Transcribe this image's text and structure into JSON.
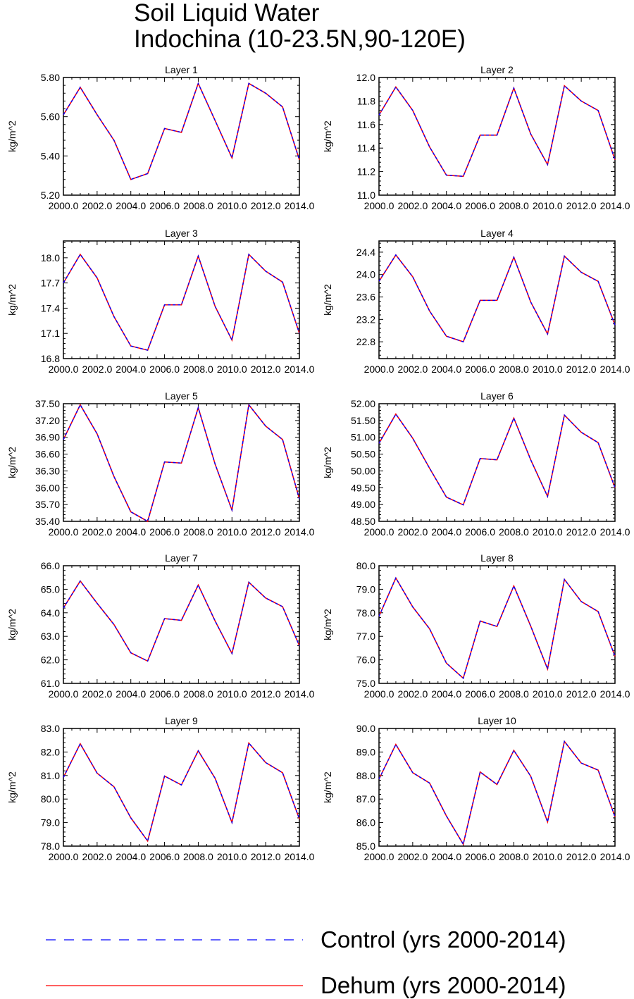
{
  "title": [
    "Soil Liquid Water",
    "Indochina (10-23.5N,90-120E)"
  ],
  "colors": {
    "control": "#0000ff",
    "dehum": "#ff0000",
    "axis": "#000000"
  },
  "legend": {
    "position": "bottom",
    "entries": [
      {
        "label": "Control (yrs 2000-2014)",
        "style": "dashed",
        "color": "#0000ff"
      },
      {
        "label": "Dehum (yrs 2000-2014)",
        "style": "solid",
        "color": "#ff0000"
      }
    ]
  },
  "chart_data": [
    {
      "type": "line",
      "title": "Layer 1",
      "ylabel": "kg/m^2",
      "xlim": [
        2000,
        2014
      ],
      "ylim": [
        5.2,
        5.8
      ],
      "yticks": [
        "5.20",
        "5.40",
        "5.60",
        "5.80"
      ],
      "xticks": [
        "2000.0",
        "2002.0",
        "2004.0",
        "2006.0",
        "2008.0",
        "2010.0",
        "2012.0",
        "2014.0"
      ],
      "x": [
        2000,
        2001,
        2002,
        2003,
        2004,
        2005,
        2006,
        2007,
        2008,
        2009,
        2010,
        2011,
        2012,
        2013,
        2014
      ],
      "series": [
        {
          "name": "Control (yrs 2000-2014)",
          "values": [
            5.61,
            5.75,
            5.61,
            5.48,
            5.28,
            5.31,
            5.54,
            5.52,
            5.77,
            5.58,
            5.39,
            5.77,
            5.72,
            5.65,
            5.38
          ]
        },
        {
          "name": "Dehum (yrs 2000-2014)",
          "values": [
            5.61,
            5.75,
            5.61,
            5.48,
            5.28,
            5.31,
            5.54,
            5.52,
            5.77,
            5.58,
            5.39,
            5.77,
            5.72,
            5.65,
            5.38
          ]
        }
      ]
    },
    {
      "type": "line",
      "title": "Layer 2",
      "ylabel": "kg/m^2",
      "xlim": [
        2000,
        2014
      ],
      "ylim": [
        11.0,
        12.0
      ],
      "yticks": [
        "11.0",
        "11.2",
        "11.4",
        "11.6",
        "11.8",
        "12.0"
      ],
      "xticks": [
        "2000.0",
        "2002.0",
        "2004.0",
        "2006.0",
        "2008.0",
        "2010.0",
        "2012.0",
        "2014.0"
      ],
      "x": [
        2000,
        2001,
        2002,
        2003,
        2004,
        2005,
        2006,
        2007,
        2008,
        2009,
        2010,
        2011,
        2012,
        2013,
        2014
      ],
      "series": [
        {
          "name": "Control (yrs 2000-2014)",
          "values": [
            11.68,
            11.92,
            11.72,
            11.41,
            11.17,
            11.16,
            11.51,
            11.51,
            11.91,
            11.52,
            11.26,
            11.93,
            11.8,
            11.72,
            11.3
          ]
        },
        {
          "name": "Dehum (yrs 2000-2014)",
          "values": [
            11.68,
            11.92,
            11.72,
            11.41,
            11.17,
            11.16,
            11.51,
            11.51,
            11.91,
            11.52,
            11.26,
            11.93,
            11.8,
            11.72,
            11.3
          ]
        }
      ]
    },
    {
      "type": "line",
      "title": "Layer 3",
      "ylabel": "kg/m^2",
      "xlim": [
        2000,
        2014
      ],
      "ylim": [
        16.8,
        18.2
      ],
      "yticks": [
        "16.8",
        "17.1",
        "17.4",
        "17.7",
        "18.0"
      ],
      "xticks": [
        "2000.0",
        "2002.0",
        "2004.0",
        "2006.0",
        "2008.0",
        "2010.0",
        "2012.0",
        "2014.0"
      ],
      "x": [
        2000,
        2001,
        2002,
        2003,
        2004,
        2005,
        2006,
        2007,
        2008,
        2009,
        2010,
        2011,
        2012,
        2013,
        2014
      ],
      "series": [
        {
          "name": "Control (yrs 2000-2014)",
          "values": [
            17.7,
            18.04,
            17.76,
            17.3,
            16.95,
            16.9,
            17.44,
            17.44,
            18.02,
            17.42,
            17.02,
            18.04,
            17.84,
            17.71,
            17.1
          ]
        },
        {
          "name": "Dehum (yrs 2000-2014)",
          "values": [
            17.7,
            18.04,
            17.76,
            17.3,
            16.95,
            16.9,
            17.44,
            17.44,
            18.02,
            17.42,
            17.02,
            18.04,
            17.84,
            17.71,
            17.1
          ]
        }
      ]
    },
    {
      "type": "line",
      "title": "Layer 4",
      "ylabel": "kg/m^2",
      "xlim": [
        2000,
        2014
      ],
      "ylim": [
        22.5,
        24.6
      ],
      "yticks": [
        "22.8",
        "23.2",
        "23.6",
        "24.0",
        "24.4"
      ],
      "xticks": [
        "2000.0",
        "2002.0",
        "2004.0",
        "2006.0",
        "2008.0",
        "2010.0",
        "2012.0",
        "2014.0"
      ],
      "x": [
        2000,
        2001,
        2002,
        2003,
        2004,
        2005,
        2006,
        2007,
        2008,
        2009,
        2010,
        2011,
        2012,
        2013,
        2014
      ],
      "series": [
        {
          "name": "Control (yrs 2000-2014)",
          "values": [
            23.88,
            24.35,
            23.96,
            23.35,
            22.9,
            22.8,
            23.54,
            23.54,
            24.31,
            23.51,
            22.94,
            24.33,
            24.04,
            23.88,
            23.1
          ]
        },
        {
          "name": "Dehum (yrs 2000-2014)",
          "values": [
            23.88,
            24.35,
            23.96,
            23.35,
            22.9,
            22.8,
            23.54,
            23.54,
            24.31,
            23.51,
            22.94,
            24.33,
            24.04,
            23.88,
            23.1
          ]
        }
      ]
    },
    {
      "type": "line",
      "title": "Layer 5",
      "ylabel": "kg/m^2",
      "xlim": [
        2000,
        2014
      ],
      "ylim": [
        35.4,
        37.5
      ],
      "yticks": [
        "35.40",
        "35.70",
        "36.00",
        "36.30",
        "36.60",
        "36.90",
        "37.20",
        "37.50"
      ],
      "xticks": [
        "2000.0",
        "2002.0",
        "2004.0",
        "2006.0",
        "2008.0",
        "2010.0",
        "2012.0",
        "2014.0"
      ],
      "x": [
        2000,
        2001,
        2002,
        2003,
        2004,
        2005,
        2006,
        2007,
        2008,
        2009,
        2010,
        2011,
        2012,
        2013,
        2014
      ],
      "series": [
        {
          "name": "Control (yrs 2000-2014)",
          "values": [
            36.86,
            37.48,
            36.96,
            36.2,
            35.57,
            35.4,
            36.46,
            36.44,
            37.43,
            36.42,
            35.6,
            37.48,
            37.1,
            36.86,
            35.8
          ]
        },
        {
          "name": "Dehum (yrs 2000-2014)",
          "values": [
            36.86,
            37.48,
            36.96,
            36.2,
            35.57,
            35.4,
            36.46,
            36.44,
            37.43,
            36.42,
            35.6,
            37.48,
            37.1,
            36.86,
            35.8
          ]
        }
      ]
    },
    {
      "type": "line",
      "title": "Layer 6",
      "ylabel": "kg/m^2",
      "xlim": [
        2000,
        2014
      ],
      "ylim": [
        48.5,
        52.0
      ],
      "yticks": [
        "48.50",
        "49.00",
        "49.50",
        "50.00",
        "50.50",
        "51.00",
        "51.50",
        "52.00"
      ],
      "xticks": [
        "2000.0",
        "2002.0",
        "2004.0",
        "2006.0",
        "2008.0",
        "2010.0",
        "2012.0",
        "2014.0"
      ],
      "x": [
        2000,
        2001,
        2002,
        2003,
        2004,
        2005,
        2006,
        2007,
        2008,
        2009,
        2010,
        2011,
        2012,
        2013,
        2014
      ],
      "series": [
        {
          "name": "Control (yrs 2000-2014)",
          "values": [
            50.82,
            51.69,
            50.97,
            50.08,
            49.22,
            48.99,
            50.37,
            50.33,
            51.57,
            50.33,
            49.24,
            51.66,
            51.15,
            50.84,
            49.5
          ]
        },
        {
          "name": "Dehum (yrs 2000-2014)",
          "values": [
            50.82,
            51.69,
            50.97,
            50.08,
            49.22,
            48.99,
            50.37,
            50.33,
            51.57,
            50.33,
            49.24,
            51.66,
            51.15,
            50.84,
            49.5
          ]
        }
      ]
    },
    {
      "type": "line",
      "title": "Layer 7",
      "ylabel": "kg/m^2",
      "xlim": [
        2000,
        2014
      ],
      "ylim": [
        61.0,
        66.0
      ],
      "yticks": [
        "61.0",
        "62.0",
        "63.0",
        "64.0",
        "65.0",
        "66.0"
      ],
      "xticks": [
        "2000.0",
        "2002.0",
        "2004.0",
        "2006.0",
        "2008.0",
        "2010.0",
        "2012.0",
        "2014.0"
      ],
      "x": [
        2000,
        2001,
        2002,
        2003,
        2004,
        2005,
        2006,
        2007,
        2008,
        2009,
        2010,
        2011,
        2012,
        2013,
        2014
      ],
      "series": [
        {
          "name": "Control (yrs 2000-2014)",
          "values": [
            64.2,
            65.35,
            64.4,
            63.5,
            62.3,
            61.95,
            63.75,
            63.68,
            65.18,
            63.65,
            62.27,
            65.3,
            64.63,
            64.26,
            62.6
          ]
        },
        {
          "name": "Dehum (yrs 2000-2014)",
          "values": [
            64.2,
            65.35,
            64.4,
            63.5,
            62.3,
            61.95,
            63.75,
            63.68,
            65.18,
            63.65,
            62.27,
            65.3,
            64.63,
            64.26,
            62.6
          ]
        }
      ]
    },
    {
      "type": "line",
      "title": "Layer 8",
      "ylabel": "kg/m^2",
      "xlim": [
        2000,
        2014
      ],
      "ylim": [
        75.0,
        80.0
      ],
      "yticks": [
        "75.0",
        "76.0",
        "77.0",
        "78.0",
        "79.0",
        "80.0"
      ],
      "xticks": [
        "2000.0",
        "2002.0",
        "2004.0",
        "2006.0",
        "2008.0",
        "2010.0",
        "2012.0",
        "2014.0"
      ],
      "x": [
        2000,
        2001,
        2002,
        2003,
        2004,
        2005,
        2006,
        2007,
        2008,
        2009,
        2010,
        2011,
        2012,
        2013,
        2014
      ],
      "series": [
        {
          "name": "Control (yrs 2000-2014)",
          "values": [
            77.85,
            79.48,
            78.25,
            77.32,
            75.86,
            75.22,
            77.65,
            77.42,
            79.14,
            77.43,
            75.61,
            79.42,
            78.48,
            78.05,
            76.15
          ]
        },
        {
          "name": "Dehum (yrs 2000-2014)",
          "values": [
            77.85,
            79.48,
            78.25,
            77.32,
            75.86,
            75.22,
            77.65,
            77.42,
            79.14,
            77.43,
            75.61,
            79.42,
            78.48,
            78.05,
            76.15
          ]
        }
      ]
    },
    {
      "type": "line",
      "title": "Layer 9",
      "ylabel": "kg/m^2",
      "xlim": [
        2000,
        2014
      ],
      "ylim": [
        78.0,
        83.0
      ],
      "yticks": [
        "78.0",
        "79.0",
        "80.0",
        "81.0",
        "82.0",
        "83.0"
      ],
      "xticks": [
        "2000.0",
        "2002.0",
        "2004.0",
        "2006.0",
        "2008.0",
        "2010.0",
        "2012.0",
        "2014.0"
      ],
      "x": [
        2000,
        2001,
        2002,
        2003,
        2004,
        2005,
        2006,
        2007,
        2008,
        2009,
        2010,
        2011,
        2012,
        2013,
        2014
      ],
      "series": [
        {
          "name": "Control (yrs 2000-2014)",
          "values": [
            80.92,
            82.35,
            81.1,
            80.52,
            79.2,
            78.22,
            80.98,
            80.6,
            82.05,
            80.88,
            79.0,
            82.38,
            81.55,
            81.12,
            79.15
          ]
        },
        {
          "name": "Dehum (yrs 2000-2014)",
          "values": [
            80.92,
            82.35,
            81.1,
            80.52,
            79.2,
            78.22,
            80.98,
            80.6,
            82.05,
            80.88,
            79.0,
            82.38,
            81.55,
            81.12,
            79.15
          ]
        }
      ]
    },
    {
      "type": "line",
      "title": "Layer 10",
      "ylabel": "kg/m^2",
      "xlim": [
        2000,
        2014
      ],
      "ylim": [
        85.0,
        90.0
      ],
      "yticks": [
        "85.0",
        "86.0",
        "87.0",
        "88.0",
        "89.0",
        "90.0"
      ],
      "xticks": [
        "2000.0",
        "2002.0",
        "2004.0",
        "2006.0",
        "2008.0",
        "2010.0",
        "2012.0",
        "2014.0"
      ],
      "x": [
        2000,
        2001,
        2002,
        2003,
        2004,
        2005,
        2006,
        2007,
        2008,
        2009,
        2010,
        2011,
        2012,
        2013,
        2014
      ],
      "series": [
        {
          "name": "Control (yrs 2000-2014)",
          "values": [
            87.85,
            89.32,
            88.12,
            87.68,
            86.28,
            85.08,
            88.15,
            87.62,
            89.07,
            87.97,
            86.03,
            89.45,
            88.53,
            88.23,
            86.25
          ]
        },
        {
          "name": "Dehum (yrs 2000-2014)",
          "values": [
            87.85,
            89.32,
            88.12,
            87.68,
            86.28,
            85.08,
            88.15,
            87.62,
            89.07,
            87.97,
            86.03,
            89.45,
            88.53,
            88.23,
            86.25
          ]
        }
      ]
    }
  ]
}
